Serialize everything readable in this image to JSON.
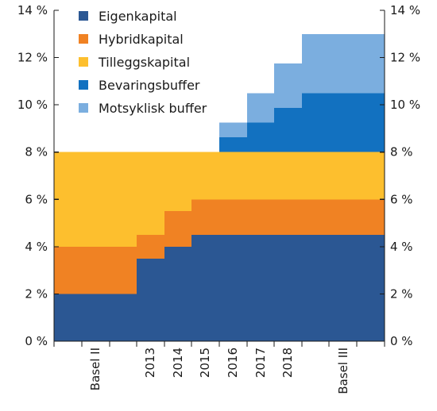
{
  "chart_data": {
    "type": "area",
    "stacked": true,
    "x_categories": [
      "Basel II",
      "2013",
      "2014",
      "2015",
      "2016",
      "2017",
      "2018",
      "Basel III"
    ],
    "y_unit": "%",
    "ylim": [
      0,
      14
    ],
    "y_ticks": [
      0,
      2,
      4,
      6,
      8,
      10,
      12,
      14
    ],
    "y_tick_labels": [
      "0 %",
      "2 %",
      "4 %",
      "6 %",
      "8 %",
      "10 %",
      "12 %",
      "14 %"
    ],
    "grid": false,
    "legend_position": "top-left",
    "series": [
      {
        "name": "Eigenkapital",
        "color": "#2B5793",
        "values": [
          2,
          3.5,
          4,
          4.5,
          4.5,
          4.5,
          4.5,
          4.5
        ]
      },
      {
        "name": "Hybridkapital",
        "color": "#F08223",
        "values": [
          2,
          1,
          1.5,
          1.5,
          1.5,
          1.5,
          1.5,
          1.5
        ]
      },
      {
        "name": "Tilleggskapital",
        "color": "#FDBF2E",
        "values": [
          4,
          3.5,
          2.5,
          2,
          2,
          2,
          2,
          2
        ]
      },
      {
        "name": "Bevaringsbuffer",
        "color": "#1271C0",
        "values": [
          0,
          0,
          0,
          0,
          0.625,
          1.25,
          1.875,
          2.5
        ]
      },
      {
        "name": "Motsyklisk buffer",
        "color": "#7BAEDF",
        "values": [
          0,
          0,
          0,
          0,
          0.625,
          1.25,
          1.875,
          2.5
        ]
      }
    ]
  }
}
